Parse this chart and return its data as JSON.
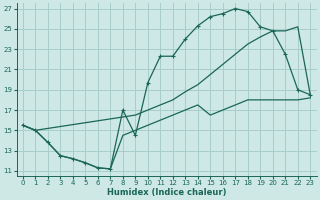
{
  "xlabel": "Humidex (Indice chaleur)",
  "bg_color": "#cde8e5",
  "grid_color": "#a8ceca",
  "line_color": "#1a6657",
  "xlim": [
    -0.5,
    23.5
  ],
  "ylim": [
    10.5,
    27.5
  ],
  "xticks": [
    0,
    1,
    2,
    3,
    4,
    5,
    6,
    7,
    8,
    9,
    10,
    11,
    12,
    13,
    14,
    15,
    16,
    17,
    18,
    19,
    20,
    21,
    22,
    23
  ],
  "yticks": [
    11,
    13,
    15,
    17,
    19,
    21,
    23,
    25,
    27
  ],
  "curve1_x": [
    0,
    1,
    2,
    3,
    4,
    5,
    6,
    7,
    8,
    9,
    10,
    11,
    12,
    13,
    14,
    15,
    16,
    17,
    18,
    19,
    20,
    21,
    22,
    23
  ],
  "curve1_y": [
    15.5,
    15.0,
    13.8,
    12.5,
    12.2,
    11.8,
    11.3,
    11.2,
    17.0,
    14.5,
    19.7,
    22.3,
    22.3,
    24.0,
    25.3,
    26.2,
    26.5,
    27.0,
    26.7,
    25.2,
    24.8,
    22.5,
    19.0,
    18.5
  ],
  "curve2_x": [
    0,
    1,
    9,
    10,
    11,
    12,
    13,
    14,
    15,
    16,
    17,
    18,
    19,
    20,
    21,
    22,
    23
  ],
  "curve2_y": [
    15.5,
    15.0,
    16.5,
    17.0,
    17.5,
    18.0,
    18.8,
    19.5,
    20.5,
    21.5,
    22.5,
    23.5,
    24.2,
    24.8,
    24.8,
    25.2,
    18.5
  ],
  "curve3_x": [
    0,
    1,
    2,
    3,
    4,
    5,
    6,
    7,
    8,
    9,
    10,
    11,
    12,
    13,
    14,
    15,
    16,
    17,
    18,
    19,
    20,
    21,
    22,
    23
  ],
  "curve3_y": [
    15.5,
    15.0,
    13.8,
    12.5,
    12.2,
    11.8,
    11.3,
    11.2,
    14.5,
    15.0,
    15.5,
    16.0,
    16.5,
    17.0,
    17.5,
    16.5,
    17.0,
    17.5,
    18.0,
    18.0,
    18.0,
    18.0,
    18.0,
    18.2
  ]
}
